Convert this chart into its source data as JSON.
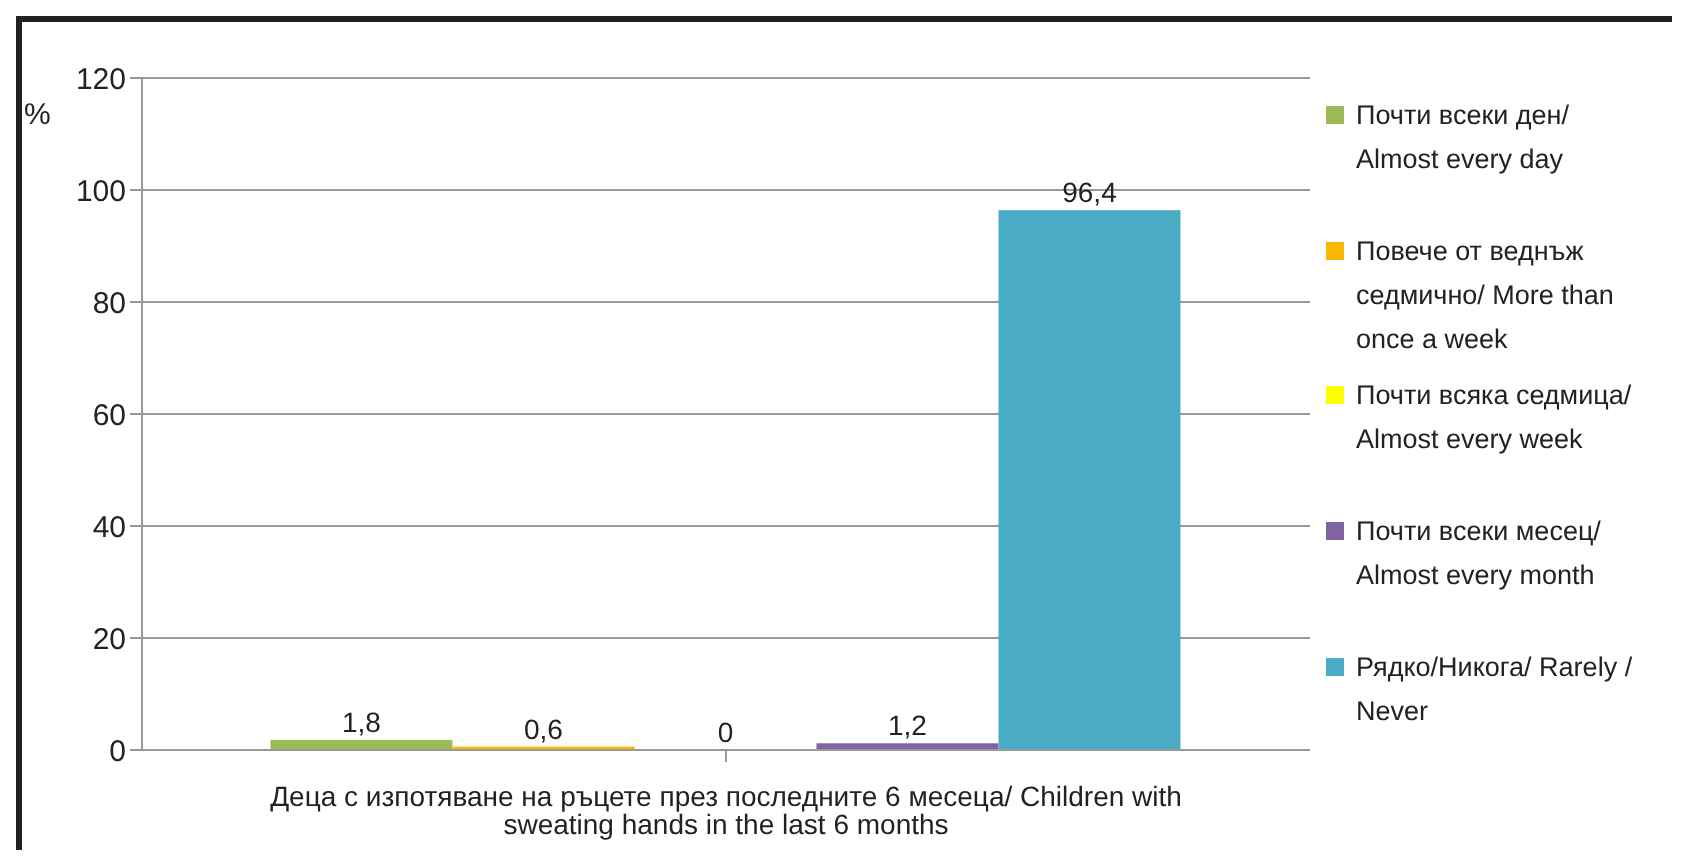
{
  "chart_data": {
    "type": "bar",
    "ylabel": "%",
    "categories": [
      "Деца с изпотяване на ръцете през последните 6 месеца/ Children with sweating hands in the last 6 months"
    ],
    "series": [
      {
        "name": "Почти всеки ден/ Almost every day",
        "color": "#9bbb59",
        "values": [
          1.8
        ],
        "value_labels": [
          "1,8"
        ]
      },
      {
        "name": "Повече от веднъж седмично/ More than once a week",
        "color": "#f9b800",
        "values": [
          0.6
        ],
        "value_labels": [
          "0,6"
        ]
      },
      {
        "name": "Почти всяка седмица/ Almost every week",
        "color": "#ffff00",
        "values": [
          0
        ],
        "value_labels": [
          "0"
        ]
      },
      {
        "name": "Почти всеки месец/ Almost every month",
        "color": "#8064a2",
        "values": [
          1.2
        ],
        "value_labels": [
          "1,2"
        ]
      },
      {
        "name": "Рядко/Никога/ Rarely / Never",
        "color": "#4bacc6",
        "values": [
          96.4
        ],
        "value_labels": [
          "96,4"
        ]
      }
    ],
    "ylim": [
      0,
      120
    ],
    "yticks": [
      0,
      20,
      40,
      60,
      80,
      100,
      120
    ],
    "grid": "y",
    "legend": "right"
  }
}
